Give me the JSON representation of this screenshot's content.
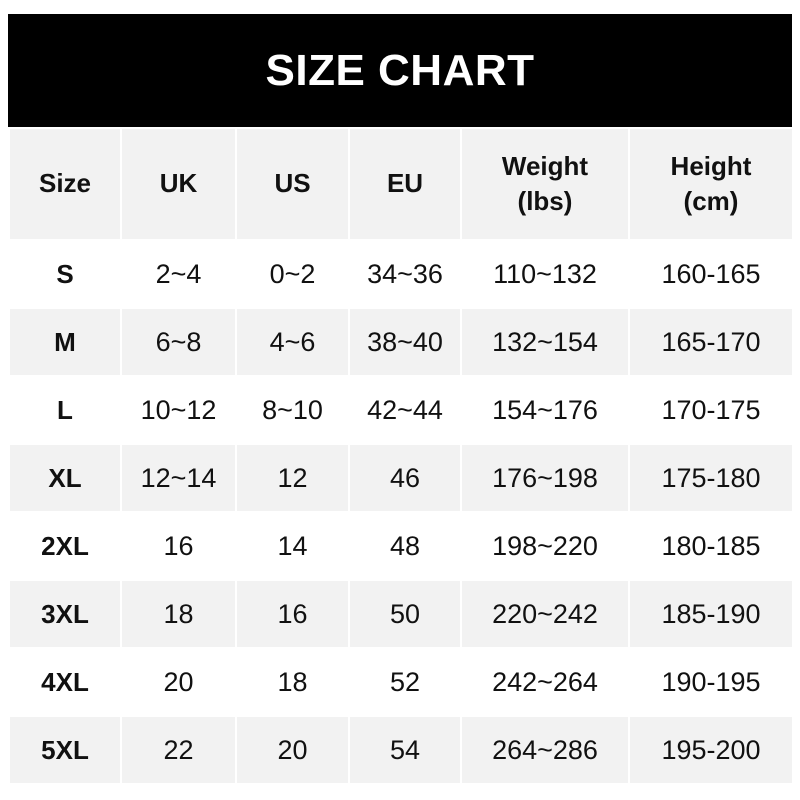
{
  "title": "SIZE CHART",
  "columns": [
    {
      "line1": "Size",
      "line2": ""
    },
    {
      "line1": "UK",
      "line2": ""
    },
    {
      "line1": "US",
      "line2": ""
    },
    {
      "line1": "EU",
      "line2": ""
    },
    {
      "line1": "Weight",
      "line2": "(lbs)"
    },
    {
      "line1": "Height",
      "line2": "(cm)"
    }
  ],
  "rows": [
    [
      "S",
      "2~4",
      "0~2",
      "34~36",
      "110~132",
      "160-165"
    ],
    [
      "M",
      "6~8",
      "4~6",
      "38~40",
      "132~154",
      "165-170"
    ],
    [
      "L",
      "10~12",
      "8~10",
      "42~44",
      "154~176",
      "170-175"
    ],
    [
      "XL",
      "12~14",
      "12",
      "46",
      "176~198",
      "175-180"
    ],
    [
      "2XL",
      "16",
      "14",
      "48",
      "198~220",
      "180-185"
    ],
    [
      "3XL",
      "18",
      "16",
      "50",
      "220~242",
      "185-190"
    ],
    [
      "4XL",
      "20",
      "18",
      "52",
      "242~264",
      "190-195"
    ],
    [
      "5XL",
      "22",
      "20",
      "54",
      "264~286",
      "195-200"
    ]
  ],
  "colors": {
    "banner": "#000000",
    "stripe": "#f2f2f2"
  }
}
